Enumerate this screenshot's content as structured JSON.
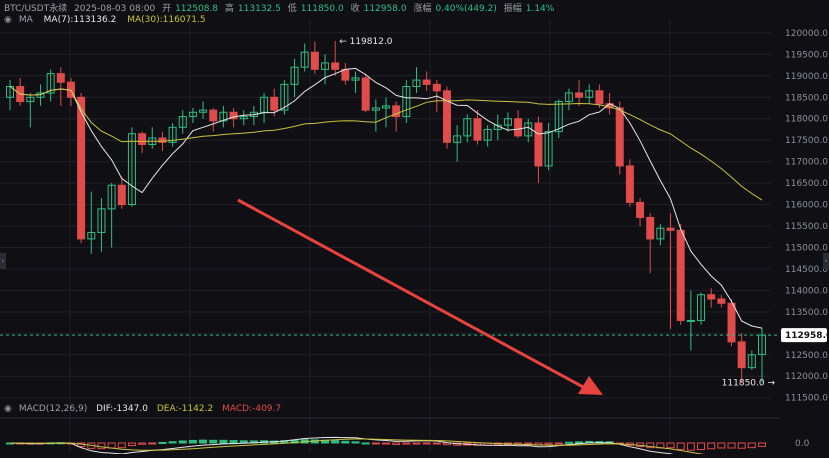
{
  "header": {
    "symbol": "BTC/USDT永续",
    "datetime": "2025-08-03 08:00",
    "open_label": "开",
    "open": "112508.8",
    "high_label": "高",
    "high": "113132.5",
    "low_label": "低",
    "low": "111850.0",
    "close_label": "收",
    "close": "112958.0",
    "change_label": "涨幅",
    "change": "0.40%(449.2)",
    "amplitude_label": "振幅",
    "amplitude": "1.14%"
  },
  "ma_legend": {
    "eye_icon": "eye-icon",
    "label": "MA",
    "ma7": "MA(7):113136.2",
    "ma30": "MA(30):116071.5",
    "ma7_color": "#e6e6e6",
    "ma30_color": "#c8c43c"
  },
  "macd_legend": {
    "eye_icon": "eye-icon",
    "label": "MACD(12,26,9)",
    "dif": "DIF:-1347.0",
    "dea": "DEA:-1142.2",
    "macd": "MACD:-409.7",
    "dif_color": "#e6e6e6",
    "dea_color": "#c8c43c",
    "macd_color": "#e04b4b"
  },
  "colors": {
    "up": "#2ebd85",
    "down": "#e04b4b",
    "background": "#101014",
    "grid": "#1e2026",
    "axis_text": "#8a8f98",
    "arrow": "#e8433f"
  },
  "price_tag": "112958.0",
  "high_annotation": "119812.0",
  "low_annotation": "111850.0",
  "macd_zero_label": "0.0",
  "chart_data": {
    "type": "candlestick",
    "title": "BTC/USDT永续",
    "y_axis_ticks": [
      "120000.0",
      "119500.0",
      "119000.0",
      "118500.0",
      "118000.0",
      "117500.0",
      "117000.0",
      "116500.0",
      "116000.0",
      "115500.0",
      "115000.0",
      "114500.0",
      "114000.0",
      "113500.0",
      "113000.0",
      "112500.0",
      "112000.0",
      "111500.0"
    ],
    "ylim": [
      111400,
      120300
    ],
    "grid": true,
    "candles": [
      {
        "o": 118500,
        "h": 118900,
        "l": 118200,
        "c": 118750
      },
      {
        "o": 118750,
        "h": 118950,
        "l": 118300,
        "c": 118400
      },
      {
        "o": 118400,
        "h": 118600,
        "l": 117800,
        "c": 118500
      },
      {
        "o": 118500,
        "h": 118800,
        "l": 118300,
        "c": 118600
      },
      {
        "o": 118600,
        "h": 119150,
        "l": 118400,
        "c": 119050
      },
      {
        "o": 119050,
        "h": 119200,
        "l": 118300,
        "c": 118850
      },
      {
        "o": 118850,
        "h": 118950,
        "l": 118300,
        "c": 118500
      },
      {
        "o": 118500,
        "h": 118600,
        "l": 115100,
        "c": 115200
      },
      {
        "o": 115200,
        "h": 116300,
        "l": 114850,
        "c": 115350
      },
      {
        "o": 115350,
        "h": 116150,
        "l": 114900,
        "c": 115900
      },
      {
        "o": 115900,
        "h": 116500,
        "l": 115000,
        "c": 116450
      },
      {
        "o": 116450,
        "h": 116650,
        "l": 115900,
        "c": 116000
      },
      {
        "o": 116000,
        "h": 117800,
        "l": 115950,
        "c": 117650
      },
      {
        "o": 117650,
        "h": 117700,
        "l": 117200,
        "c": 117400
      },
      {
        "o": 117400,
        "h": 117800,
        "l": 117300,
        "c": 117550
      },
      {
        "o": 117550,
        "h": 117700,
        "l": 117250,
        "c": 117450
      },
      {
        "o": 117450,
        "h": 117900,
        "l": 117350,
        "c": 117800
      },
      {
        "o": 117800,
        "h": 118200,
        "l": 117650,
        "c": 118050
      },
      {
        "o": 118050,
        "h": 118250,
        "l": 117900,
        "c": 118150
      },
      {
        "o": 118150,
        "h": 118400,
        "l": 118000,
        "c": 118200
      },
      {
        "o": 118200,
        "h": 118250,
        "l": 117700,
        "c": 117950
      },
      {
        "o": 117950,
        "h": 118300,
        "l": 117800,
        "c": 118150
      },
      {
        "o": 118150,
        "h": 118250,
        "l": 117800,
        "c": 118000
      },
      {
        "o": 118000,
        "h": 118200,
        "l": 117850,
        "c": 118050
      },
      {
        "o": 118050,
        "h": 118300,
        "l": 117850,
        "c": 118150
      },
      {
        "o": 118150,
        "h": 118600,
        "l": 117900,
        "c": 118500
      },
      {
        "o": 118500,
        "h": 118700,
        "l": 118050,
        "c": 118200
      },
      {
        "o": 118200,
        "h": 118900,
        "l": 118100,
        "c": 118800
      },
      {
        "o": 118800,
        "h": 119400,
        "l": 118500,
        "c": 119200
      },
      {
        "o": 119200,
        "h": 119750,
        "l": 119100,
        "c": 119550
      },
      {
        "o": 119550,
        "h": 119800,
        "l": 119050,
        "c": 119150
      },
      {
        "o": 119150,
        "h": 119500,
        "l": 118800,
        "c": 119300
      },
      {
        "o": 119300,
        "h": 119812,
        "l": 119000,
        "c": 119150
      },
      {
        "o": 119150,
        "h": 119300,
        "l": 118800,
        "c": 118900
      },
      {
        "o": 118900,
        "h": 119100,
        "l": 118600,
        "c": 118950
      },
      {
        "o": 118950,
        "h": 119050,
        "l": 118150,
        "c": 118200
      },
      {
        "o": 118200,
        "h": 118450,
        "l": 117700,
        "c": 118250
      },
      {
        "o": 118250,
        "h": 118500,
        "l": 117800,
        "c": 118300
      },
      {
        "o": 118300,
        "h": 118400,
        "l": 117700,
        "c": 118050
      },
      {
        "o": 118050,
        "h": 118900,
        "l": 117900,
        "c": 118750
      },
      {
        "o": 118750,
        "h": 119200,
        "l": 118600,
        "c": 118900
      },
      {
        "o": 118900,
        "h": 119100,
        "l": 118650,
        "c": 118800
      },
      {
        "o": 118800,
        "h": 118900,
        "l": 118150,
        "c": 118650
      },
      {
        "o": 118650,
        "h": 118750,
        "l": 117300,
        "c": 117450
      },
      {
        "o": 117450,
        "h": 117850,
        "l": 117000,
        "c": 117600
      },
      {
        "o": 117600,
        "h": 118100,
        "l": 117450,
        "c": 118000
      },
      {
        "o": 118000,
        "h": 118200,
        "l": 117400,
        "c": 117500
      },
      {
        "o": 117500,
        "h": 117850,
        "l": 117350,
        "c": 117750
      },
      {
        "o": 117750,
        "h": 118100,
        "l": 117500,
        "c": 117850
      },
      {
        "o": 117850,
        "h": 118150,
        "l": 117700,
        "c": 118000
      },
      {
        "o": 118000,
        "h": 118200,
        "l": 117550,
        "c": 117600
      },
      {
        "o": 117600,
        "h": 118000,
        "l": 117450,
        "c": 117900
      },
      {
        "o": 117900,
        "h": 118050,
        "l": 116500,
        "c": 116900
      },
      {
        "o": 116900,
        "h": 117900,
        "l": 116800,
        "c": 117700
      },
      {
        "o": 117700,
        "h": 118450,
        "l": 117550,
        "c": 118400
      },
      {
        "o": 118400,
        "h": 118700,
        "l": 118200,
        "c": 118600
      },
      {
        "o": 118600,
        "h": 118900,
        "l": 118300,
        "c": 118500
      },
      {
        "o": 118500,
        "h": 118800,
        "l": 118350,
        "c": 118650
      },
      {
        "o": 118650,
        "h": 118800,
        "l": 118250,
        "c": 118350
      },
      {
        "o": 118350,
        "h": 118600,
        "l": 118100,
        "c": 118250
      },
      {
        "o": 118250,
        "h": 118400,
        "l": 116700,
        "c": 116900
      },
      {
        "o": 116900,
        "h": 117050,
        "l": 115950,
        "c": 116050
      },
      {
        "o": 116050,
        "h": 116150,
        "l": 115500,
        "c": 115700
      },
      {
        "o": 115700,
        "h": 115800,
        "l": 114400,
        "c": 115200
      },
      {
        "o": 115200,
        "h": 115550,
        "l": 115050,
        "c": 115450
      },
      {
        "o": 115450,
        "h": 115800,
        "l": 113100,
        "c": 115400
      },
      {
        "o": 115400,
        "h": 115550,
        "l": 113200,
        "c": 113300
      },
      {
        "o": 113300,
        "h": 114000,
        "l": 112600,
        "c": 113300
      },
      {
        "o": 113300,
        "h": 113950,
        "l": 113200,
        "c": 113900
      },
      {
        "o": 113900,
        "h": 114050,
        "l": 113600,
        "c": 113800
      },
      {
        "o": 113800,
        "h": 113900,
        "l": 113600,
        "c": 113700
      },
      {
        "o": 113700,
        "h": 113800,
        "l": 112700,
        "c": 112800
      },
      {
        "o": 112800,
        "h": 113000,
        "l": 111850,
        "c": 112200
      },
      {
        "o": 112200,
        "h": 112600,
        "l": 112150,
        "c": 112500
      },
      {
        "o": 112508.8,
        "h": 113132.5,
        "l": 111850,
        "c": 112958
      }
    ]
  }
}
